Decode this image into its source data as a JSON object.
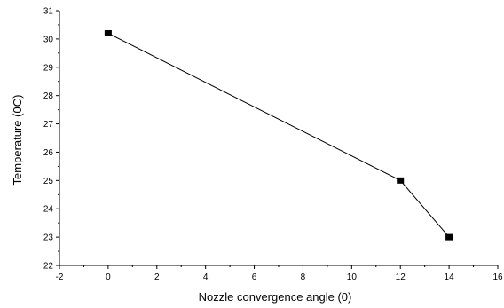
{
  "chart_data": {
    "type": "line",
    "title": "",
    "xlabel": "Nozzle convergence angle (0)",
    "ylabel": "Temperature (0C)",
    "xlim": [
      -2,
      16
    ],
    "ylim": [
      22,
      31
    ],
    "xticks": [
      -2,
      0,
      2,
      4,
      6,
      8,
      10,
      12,
      14,
      16
    ],
    "yticks": [
      22,
      23,
      24,
      25,
      26,
      27,
      28,
      29,
      30,
      31
    ],
    "grid": false,
    "legend": "none",
    "series": [
      {
        "x": [
          0,
          12,
          14
        ],
        "y": [
          30.2,
          25.0,
          23.0
        ],
        "marker": "square",
        "color": "#000000"
      }
    ]
  }
}
